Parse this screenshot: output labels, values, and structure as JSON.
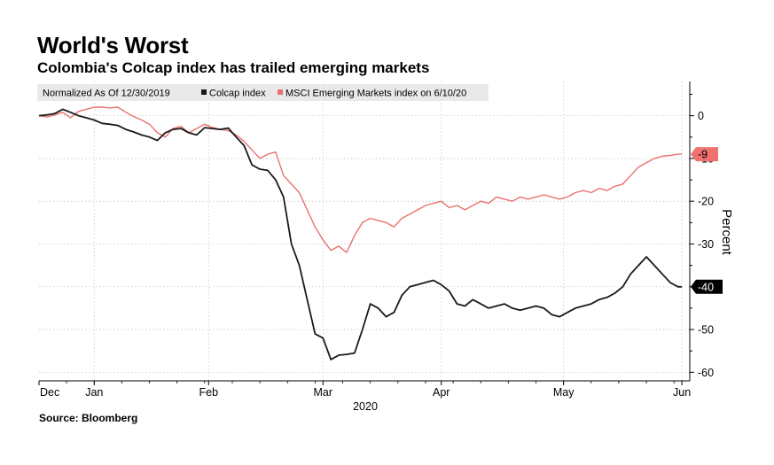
{
  "title": "World's Worst",
  "subtitle": "Colombia's Colcap index has trailed emerging markets",
  "source": "Source: Bloomberg",
  "legend": {
    "normalized": "Normalized As Of 12/30/2019",
    "series1": "Colcap index",
    "series2": "MSCI Emerging Markets index on 6/10/20"
  },
  "chart_data": {
    "type": "line",
    "title": "World's Worst",
    "subtitle": "Colombia's Colcap index has trailed emerging markets",
    "ylabel": "Percent",
    "ylim": [
      -62,
      8
    ],
    "yticks": [
      0,
      -10,
      -20,
      -30,
      -40,
      -50,
      -60
    ],
    "ytick_labels": [
      "0",
      "-10",
      "-20",
      "-30",
      "-40",
      "-50",
      "-60"
    ],
    "xticks": [
      {
        "label": "Dec",
        "x": "2019-12-30"
      },
      {
        "label": "Jan",
        "x": "2020-01-13"
      },
      {
        "label": "Feb",
        "x": "2020-02-11"
      },
      {
        "label": "Mar",
        "x": "2020-03-11"
      },
      {
        "label": "Apr",
        "x": "2020-04-10"
      },
      {
        "label": "May",
        "x": "2020-05-11"
      },
      {
        "label": "Jun",
        "x": "2020-06-10"
      }
    ],
    "year_label": "2020",
    "xlim": [
      "2019-12-30",
      "2020-06-12"
    ],
    "grid": true,
    "legend_position": "top-left",
    "end_labels": [
      {
        "series": "MSCI Emerging Markets index on 6/10/20",
        "text": "-9"
      },
      {
        "series": "Colcap index",
        "text": "-40"
      }
    ],
    "series": [
      {
        "name": "Colcap index",
        "color": "#1a1a1a",
        "x": [
          "2019-12-30",
          "2020-01-01",
          "2020-01-03",
          "2020-01-05",
          "2020-01-07",
          "2020-01-09",
          "2020-01-11",
          "2020-01-13",
          "2020-01-15",
          "2020-01-17",
          "2020-01-19",
          "2020-01-21",
          "2020-01-23",
          "2020-01-25",
          "2020-01-27",
          "2020-01-29",
          "2020-01-31",
          "2020-02-02",
          "2020-02-04",
          "2020-02-06",
          "2020-02-08",
          "2020-02-10",
          "2020-02-12",
          "2020-02-14",
          "2020-02-16",
          "2020-02-18",
          "2020-02-20",
          "2020-02-22",
          "2020-02-24",
          "2020-02-26",
          "2020-02-28",
          "2020-03-01",
          "2020-03-03",
          "2020-03-05",
          "2020-03-07",
          "2020-03-09",
          "2020-03-11",
          "2020-03-13",
          "2020-03-15",
          "2020-03-17",
          "2020-03-19",
          "2020-03-21",
          "2020-03-23",
          "2020-03-25",
          "2020-03-27",
          "2020-03-29",
          "2020-03-31",
          "2020-04-02",
          "2020-04-04",
          "2020-04-06",
          "2020-04-08",
          "2020-04-10",
          "2020-04-12",
          "2020-04-14",
          "2020-04-16",
          "2020-04-18",
          "2020-04-20",
          "2020-04-22",
          "2020-04-24",
          "2020-04-26",
          "2020-04-28",
          "2020-04-30",
          "2020-05-02",
          "2020-05-04",
          "2020-05-06",
          "2020-05-08",
          "2020-05-10",
          "2020-05-12",
          "2020-05-14",
          "2020-05-16",
          "2020-05-18",
          "2020-05-20",
          "2020-05-22",
          "2020-05-24",
          "2020-05-26",
          "2020-05-28",
          "2020-05-30",
          "2020-06-01",
          "2020-06-03",
          "2020-06-05",
          "2020-06-07",
          "2020-06-09",
          "2020-06-10"
        ],
        "y": [
          0,
          0.2,
          0.5,
          1.5,
          0.8,
          0,
          -0.5,
          -1,
          -1.8,
          -2,
          -2.3,
          -3.2,
          -3.8,
          -4.5,
          -5,
          -5.8,
          -4,
          -3.2,
          -3,
          -4,
          -4.5,
          -2.8,
          -3,
          -3.2,
          -2.9,
          -5,
          -7,
          -11.5,
          -12.5,
          -12.8,
          -15,
          -19,
          -30,
          -35,
          -43,
          -51,
          -52,
          -57,
          -56,
          -55.8,
          -55.5,
          -50,
          -44,
          -45,
          -47,
          -46,
          -42,
          -40,
          -39.5,
          -39,
          -38.5,
          -39.5,
          -41,
          -44,
          -44.5,
          -43,
          -44,
          -45,
          -44.5,
          -44,
          -45,
          -45.5,
          -45,
          -44.5,
          -45,
          -46.5,
          -47,
          -46,
          -45,
          -44.5,
          -44,
          -43,
          -42.5,
          -41.5,
          -40,
          -37,
          -35,
          -33,
          -35,
          -37,
          -39,
          -40,
          -40
        ]
      },
      {
        "name": "MSCI Emerging Markets index on 6/10/20",
        "color": "#e8726f",
        "x": [
          "2019-12-30",
          "2020-01-01",
          "2020-01-03",
          "2020-01-05",
          "2020-01-07",
          "2020-01-09",
          "2020-01-11",
          "2020-01-13",
          "2020-01-15",
          "2020-01-17",
          "2020-01-19",
          "2020-01-21",
          "2020-01-23",
          "2020-01-25",
          "2020-01-27",
          "2020-01-29",
          "2020-01-31",
          "2020-02-02",
          "2020-02-04",
          "2020-02-06",
          "2020-02-08",
          "2020-02-10",
          "2020-02-12",
          "2020-02-14",
          "2020-02-16",
          "2020-02-18",
          "2020-02-20",
          "2020-02-22",
          "2020-02-24",
          "2020-02-26",
          "2020-02-28",
          "2020-03-01",
          "2020-03-03",
          "2020-03-05",
          "2020-03-07",
          "2020-03-09",
          "2020-03-11",
          "2020-03-13",
          "2020-03-15",
          "2020-03-17",
          "2020-03-19",
          "2020-03-21",
          "2020-03-23",
          "2020-03-25",
          "2020-03-27",
          "2020-03-29",
          "2020-03-31",
          "2020-04-02",
          "2020-04-04",
          "2020-04-06",
          "2020-04-08",
          "2020-04-10",
          "2020-04-12",
          "2020-04-14",
          "2020-04-16",
          "2020-04-18",
          "2020-04-20",
          "2020-04-22",
          "2020-04-24",
          "2020-04-26",
          "2020-04-28",
          "2020-04-30",
          "2020-05-02",
          "2020-05-04",
          "2020-05-06",
          "2020-05-08",
          "2020-05-10",
          "2020-05-12",
          "2020-05-14",
          "2020-05-16",
          "2020-05-18",
          "2020-05-20",
          "2020-05-22",
          "2020-05-24",
          "2020-05-26",
          "2020-05-28",
          "2020-05-30",
          "2020-06-01",
          "2020-06-03",
          "2020-06-05",
          "2020-06-07",
          "2020-06-09",
          "2020-06-10"
        ],
        "y": [
          0,
          -0.3,
          0.2,
          0.8,
          -0.5,
          1,
          1.5,
          2,
          2,
          1.8,
          2,
          0.8,
          -0.2,
          -1,
          -2,
          -4,
          -5,
          -3,
          -2.5,
          -4,
          -3,
          -2,
          -2.8,
          -3.2,
          -3.5,
          -4.5,
          -6,
          -8,
          -10,
          -9,
          -8.5,
          -14,
          -16,
          -18,
          -22,
          -26,
          -29,
          -31.5,
          -30.5,
          -32,
          -28,
          -25,
          -24,
          -24.5,
          -25,
          -26,
          -24,
          -23,
          -22,
          -21,
          -20.5,
          -20,
          -21.5,
          -21,
          -22,
          -21,
          -20,
          -20.5,
          -19,
          -19.5,
          -20,
          -19,
          -19.5,
          -19,
          -18.5,
          -19,
          -19.5,
          -19,
          -18,
          -17.5,
          -18,
          -17,
          -17.5,
          -16.5,
          -16,
          -14,
          -12,
          -11,
          -10,
          -9.5,
          -9.3,
          -9,
          -9
        ]
      }
    ]
  }
}
